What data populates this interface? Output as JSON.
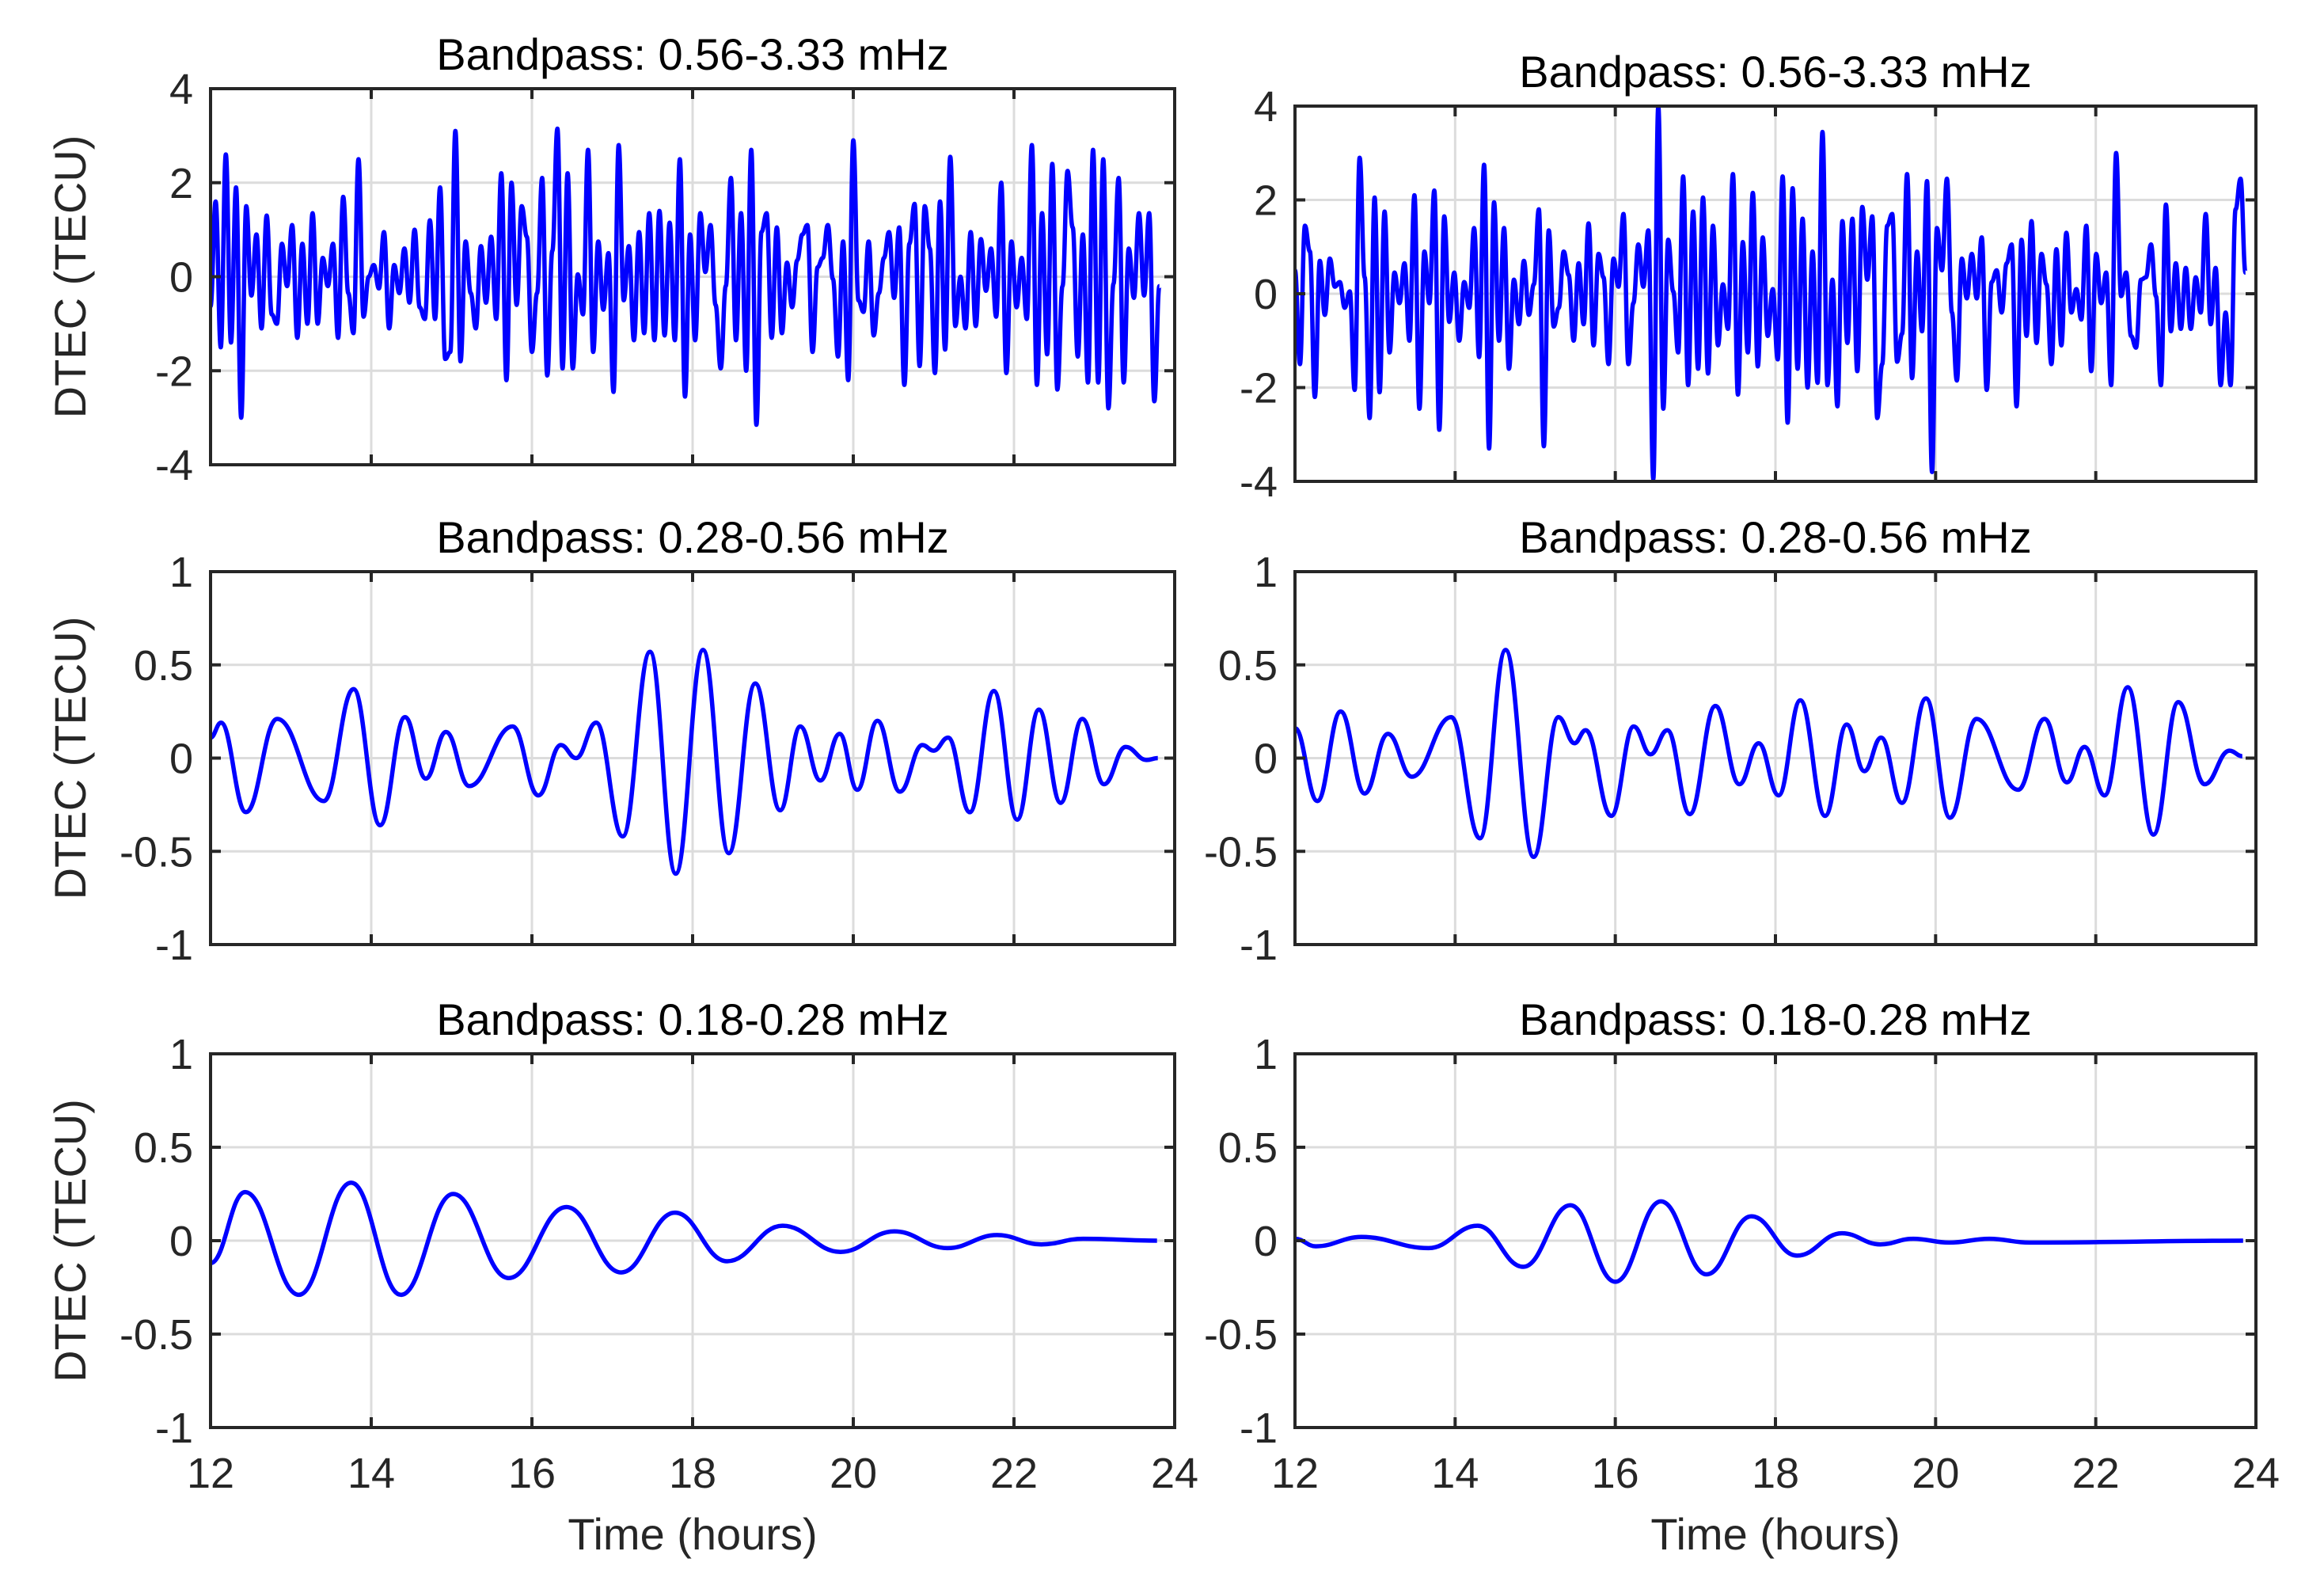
{
  "chart_data": [
    {
      "type": "line",
      "title": "Bandpass: 0.56-3.33 mHz",
      "xlabel": "",
      "ylabel": "DTEC (TECU)",
      "xlim": [
        12,
        24
      ],
      "ylim": [
        -4,
        4
      ],
      "xticks": [
        12,
        14,
        16,
        18,
        20,
        22,
        24
      ],
      "xticklabels": [],
      "yticks": [
        -4,
        -2,
        0,
        2,
        4
      ],
      "yticklabels": [
        "-4",
        "-2",
        "0",
        "2",
        "4"
      ],
      "grid": true,
      "line_color": "#0000ff",
      "series": [
        {
          "time_start": 12,
          "time_end": 23.81,
          "values": [
            -0.63,
            1.6,
            -1.5,
            2.6,
            -1.4,
            1.9,
            -3.0,
            1.5,
            -0.4,
            0.9,
            -1.1,
            1.3,
            -0.8,
            -1.0,
            0.7,
            -0.2,
            1.1,
            -1.3,
            0.7,
            -1.0,
            1.35,
            -1.0,
            0.4,
            -0.2,
            0.7,
            -1.3,
            1.7,
            -0.35,
            -1.2,
            2.5,
            -0.85,
            0,
            0.25,
            -0.25,
            0.95,
            -1.1,
            0.25,
            -0.35,
            0.6,
            -0.55,
            1.0,
            -0.65,
            -0.9,
            1.2,
            -0.9,
            1.9,
            -1.75,
            -1.6,
            3.1,
            -1.8,
            0.75,
            -0.35,
            -1.1,
            0.65,
            -0.55,
            0.85,
            -0.9,
            2.2,
            -2.2,
            2.0,
            -0.6,
            1.5,
            0.85,
            -1.6,
            -0.35,
            2.1,
            -2.1,
            0.55,
            3.15,
            -1.95,
            2.2,
            -1.95,
            0.05,
            -0.8,
            2.7,
            -1.6,
            0.75,
            -0.7,
            0.5,
            -2.45,
            2.8,
            -0.5,
            0.65,
            -1.35,
            0.95,
            -1.2,
            1.35,
            -1.35,
            1.4,
            -1.25,
            1.15,
            -1.35,
            2.5,
            -2.55,
            0.9,
            -1.35,
            1.35,
            0.1,
            1.1,
            -0.6,
            -1.95,
            -0.2,
            2.1,
            -1.35,
            1.35,
            -2.0,
            2.7,
            -3.15,
            0.95,
            1.35,
            -1.3,
            1.05,
            -1.2,
            0.3,
            -0.65,
            0.35,
            0.9,
            1.1,
            -1.6,
            0.2,
            0.4,
            1.1,
            -0.05,
            -1.7,
            0.75,
            -2.2,
            2.9,
            -0.5,
            -0.75,
            0.75,
            -1.25,
            -0.35,
            0.4,
            0.95,
            -0.45,
            1.05,
            -2.3,
            0.7,
            1.55,
            -1.9,
            1.5,
            0.6,
            -2.05,
            1.6,
            -1.55,
            2.55,
            -1.05,
            0,
            -1.1,
            0.95,
            -1.05,
            0.8,
            -0.3,
            0.6,
            -0.85,
            2.0,
            -2.05,
            0.75,
            -0.65,
            0.4,
            -0.9,
            2.8,
            -2.3,
            1.35,
            -1.65,
            2.4,
            -2.4,
            -0.2,
            2.25,
            1.05,
            -1.7,
            0.9,
            -2.25,
            2.7,
            -2.25,
            2.5,
            -2.8,
            -0.15,
            2.1,
            -2.25,
            0.6,
            -0.45,
            1.35,
            -0.4,
            1.35,
            -2.65,
            -0.2
          ]
        }
      ]
    },
    {
      "type": "line",
      "title": "Bandpass: 0.56-3.33 mHz",
      "xlabel": "",
      "ylabel": "",
      "xlim": [
        12,
        24
      ],
      "ylim": [
        -4,
        4
      ],
      "xticks": [
        12,
        14,
        16,
        18,
        20,
        22,
        24
      ],
      "xticklabels": [],
      "yticks": [
        -4,
        -2,
        0,
        2,
        4
      ],
      "yticklabels": [
        "-4",
        "-2",
        "0",
        "2",
        "4"
      ],
      "grid": true,
      "line_color": "#0000ff",
      "series": [
        {
          "time_start": 12,
          "time_end": 23.87,
          "values": [
            0.5,
            -1.5,
            1.45,
            0.9,
            -2.2,
            0.7,
            -0.45,
            0.75,
            0.15,
            0.25,
            -0.3,
            0.05,
            -2.05,
            2.9,
            0.35,
            -2.65,
            2.05,
            -2.1,
            1.75,
            -1.25,
            0.45,
            -0.2,
            0.65,
            -1.0,
            2.1,
            -2.45,
            0.9,
            -0.2,
            2.2,
            -2.9,
            1.65,
            -0.6,
            0.45,
            -1.0,
            0.25,
            -0.3,
            1.4,
            -1.35,
            2.75,
            -3.3,
            1.95,
            -1.0,
            1.4,
            -1.6,
            0.3,
            -0.65,
            0.7,
            -0.45,
            0.2,
            1.8,
            -3.25,
            1.35,
            -0.7,
            -0.3,
            0.9,
            0.4,
            -1.0,
            0.65,
            -0.65,
            1.5,
            -1.1,
            0.85,
            0.35,
            -1.5,
            0.75,
            0.15,
            1.7,
            -1.5,
            -0.2,
            1.05,
            0.15,
            1.35,
            -3.95,
            4.0,
            -2.45,
            1.15,
            0.05,
            -1.25,
            2.5,
            -1.95,
            1.75,
            -1.6,
            2.05,
            -1.7,
            1.45,
            -1.1,
            0.2,
            -0.75,
            2.55,
            -2.15,
            1.1,
            -1.25,
            2.15,
            -1.55,
            1.2,
            -0.9,
            0.1,
            -1.4,
            2.5,
            -2.75,
            2.25,
            -1.6,
            1.6,
            -2.0,
            0.9,
            -1.9,
            3.45,
            -1.95,
            0.3,
            -2.4,
            1.55,
            -1.05,
            1.6,
            -1.65,
            1.85,
            0.3,
            1.65,
            -2.65,
            -1.5,
            1.45,
            1.7,
            -1.45,
            -0.85,
            2.55,
            -1.8,
            0.9,
            -0.8,
            2.4,
            -3.8,
            1.4,
            0.5,
            2.45,
            -0.4,
            -1.85,
            0.75,
            -0.1,
            0.85,
            -0.1,
            1.2,
            -2.05,
            0.25,
            0.5,
            -0.4,
            0.65,
            1.05,
            -2.4,
            1.15,
            -0.9,
            1.55,
            -1.05,
            0.85,
            0.2,
            -1.5,
            0.95,
            -1.1,
            1.3,
            -0.4,
            0.1,
            -0.55,
            1.45,
            -1.65,
            0.85,
            -0.2,
            0.45,
            -1.95,
            3.0,
            -0.05,
            0.45,
            -0.9,
            -1.15,
            0.3,
            0.35,
            1.05,
            -0.05,
            -1.95,
            1.9,
            -0.8,
            0.65,
            -0.75,
            0.55,
            -0.75,
            0.35,
            -0.4,
            1.7,
            -0.65,
            0.55,
            -1.95,
            -0.4,
            -1.95,
            1.8,
            2.45,
            0.45
          ]
        }
      ]
    },
    {
      "type": "line",
      "title": "Bandpass: 0.28-0.56 mHz",
      "xlabel": "",
      "ylabel": "DTEC (TECU)",
      "xlim": [
        12,
        24
      ],
      "ylim": [
        -1,
        1
      ],
      "xticks": [
        12,
        14,
        16,
        18,
        20,
        22,
        24
      ],
      "xticklabels": [],
      "yticks": [
        -1,
        -0.5,
        0,
        0.5,
        1
      ],
      "yticklabels": [
        "-1",
        "-0.5",
        "0",
        "0.5",
        "1"
      ],
      "grid": true,
      "line_color": "#0000ff",
      "series": [
        {
          "points": [
            [
              12,
              0.11
            ],
            [
              12.13,
              0.19
            ],
            [
              12.44,
              -0.29
            ],
            [
              12.83,
              0.21
            ],
            [
              13.41,
              -0.23
            ],
            [
              13.78,
              0.37
            ],
            [
              14.11,
              -0.36
            ],
            [
              14.42,
              0.22
            ],
            [
              14.68,
              -0.11
            ],
            [
              14.93,
              0.14
            ],
            [
              15.22,
              -0.15
            ],
            [
              15.76,
              0.17
            ],
            [
              16.08,
              -0.2
            ],
            [
              16.36,
              0.07
            ],
            [
              16.55,
              0.0
            ],
            [
              16.8,
              0.19
            ],
            [
              17.13,
              -0.42
            ],
            [
              17.47,
              0.57
            ],
            [
              17.79,
              -0.62
            ],
            [
              18.13,
              0.58
            ],
            [
              18.45,
              -0.51
            ],
            [
              18.78,
              0.4
            ],
            [
              19.09,
              -0.28
            ],
            [
              19.34,
              0.17
            ],
            [
              19.59,
              -0.12
            ],
            [
              19.83,
              0.13
            ],
            [
              20.05,
              -0.17
            ],
            [
              20.3,
              0.2
            ],
            [
              20.58,
              -0.18
            ],
            [
              20.86,
              0.07
            ],
            [
              21.0,
              0.04
            ],
            [
              21.18,
              0.11
            ],
            [
              21.45,
              -0.29
            ],
            [
              21.75,
              0.36
            ],
            [
              22.04,
              -0.33
            ],
            [
              22.31,
              0.26
            ],
            [
              22.58,
              -0.24
            ],
            [
              22.85,
              0.21
            ],
            [
              23.12,
              -0.14
            ],
            [
              23.39,
              0.06
            ],
            [
              23.65,
              -0.01
            ],
            [
              23.79,
              0.0
            ]
          ]
        }
      ]
    },
    {
      "type": "line",
      "title": "Bandpass: 0.28-0.56 mHz",
      "xlabel": "",
      "ylabel": "",
      "xlim": [
        12,
        24
      ],
      "ylim": [
        -1,
        1
      ],
      "xticks": [
        12,
        14,
        16,
        18,
        20,
        22,
        24
      ],
      "xticklabels": [],
      "yticks": [
        -1,
        -0.5,
        0,
        0.5,
        1
      ],
      "yticklabels": [
        "-1",
        "-0.5",
        "0",
        "0.5",
        "1"
      ],
      "grid": true,
      "line_color": "#0000ff",
      "series": [
        {
          "points": [
            [
              12,
              0.16
            ],
            [
              12.28,
              -0.23
            ],
            [
              12.57,
              0.25
            ],
            [
              12.87,
              -0.19
            ],
            [
              13.16,
              0.13
            ],
            [
              13.46,
              -0.1
            ],
            [
              13.95,
              0.22
            ],
            [
              14.31,
              -0.43
            ],
            [
              14.63,
              0.58
            ],
            [
              14.98,
              -0.53
            ],
            [
              15.29,
              0.22
            ],
            [
              15.49,
              0.08
            ],
            [
              15.63,
              0.15
            ],
            [
              15.95,
              -0.31
            ],
            [
              16.23,
              0.17
            ],
            [
              16.44,
              0.02
            ],
            [
              16.65,
              0.15
            ],
            [
              16.93,
              -0.3
            ],
            [
              17.25,
              0.28
            ],
            [
              17.55,
              -0.14
            ],
            [
              17.79,
              0.08
            ],
            [
              18.04,
              -0.2
            ],
            [
              18.31,
              0.31
            ],
            [
              18.62,
              -0.31
            ],
            [
              18.89,
              0.18
            ],
            [
              19.11,
              -0.07
            ],
            [
              19.32,
              0.11
            ],
            [
              19.58,
              -0.24
            ],
            [
              19.88,
              0.32
            ],
            [
              20.18,
              -0.32
            ],
            [
              20.51,
              0.21
            ],
            [
              21.03,
              -0.17
            ],
            [
              21.36,
              0.21
            ],
            [
              21.64,
              -0.13
            ],
            [
              21.86,
              0.06
            ],
            [
              22.11,
              -0.2
            ],
            [
              22.4,
              0.38
            ],
            [
              22.72,
              -0.41
            ],
            [
              23.03,
              0.3
            ],
            [
              23.36,
              -0.14
            ],
            [
              23.67,
              0.04
            ],
            [
              23.83,
              0.01
            ]
          ]
        }
      ]
    },
    {
      "type": "line",
      "title": "Bandpass: 0.18-0.28 mHz",
      "xlabel": "Time (hours)",
      "ylabel": "DTEC (TECU)",
      "xlim": [
        12,
        24
      ],
      "ylim": [
        -1,
        1
      ],
      "xticks": [
        12,
        14,
        16,
        18,
        20,
        22,
        24
      ],
      "xticklabels": [
        "12",
        "14",
        "16",
        "18",
        "20",
        "22",
        "24"
      ],
      "yticks": [
        -1,
        -0.5,
        0,
        0.5,
        1
      ],
      "yticklabels": [
        "-1",
        "-0.5",
        "0",
        "0.5",
        "1"
      ],
      "grid": true,
      "line_color": "#0000ff",
      "series": [
        {
          "points": [
            [
              12,
              -0.12
            ],
            [
              12.43,
              0.26
            ],
            [
              13.1,
              -0.29
            ],
            [
              13.75,
              0.31
            ],
            [
              14.37,
              -0.29
            ],
            [
              15.02,
              0.25
            ],
            [
              15.71,
              -0.2
            ],
            [
              16.43,
              0.18
            ],
            [
              17.11,
              -0.17
            ],
            [
              17.78,
              0.15
            ],
            [
              18.43,
              -0.11
            ],
            [
              19.12,
              0.08
            ],
            [
              19.84,
              -0.06
            ],
            [
              20.51,
              0.05
            ],
            [
              21.17,
              -0.04
            ],
            [
              21.79,
              0.03
            ],
            [
              22.34,
              -0.02
            ],
            [
              22.86,
              0.01
            ],
            [
              23.78,
              0.0
            ]
          ]
        }
      ]
    },
    {
      "type": "line",
      "title": "Bandpass: 0.18-0.28 mHz",
      "xlabel": "Time (hours)",
      "ylabel": "",
      "xlim": [
        12,
        24
      ],
      "ylim": [
        -1,
        1
      ],
      "xticks": [
        12,
        14,
        16,
        18,
        20,
        22,
        24
      ],
      "xticklabels": [
        "12",
        "14",
        "16",
        "18",
        "20",
        "22",
        "24"
      ],
      "yticks": [
        -1,
        -0.5,
        0,
        0.5,
        1
      ],
      "yticklabels": [
        "-1",
        "-0.5",
        "0",
        "0.5",
        "1"
      ],
      "grid": true,
      "line_color": "#0000ff",
      "series": [
        {
          "points": [
            [
              12,
              0.01
            ],
            [
              12.26,
              -0.03
            ],
            [
              12.83,
              0.02
            ],
            [
              13.67,
              -0.04
            ],
            [
              14.28,
              0.08
            ],
            [
              14.85,
              -0.14
            ],
            [
              15.44,
              0.19
            ],
            [
              16.0,
              -0.22
            ],
            [
              16.57,
              0.21
            ],
            [
              17.14,
              -0.18
            ],
            [
              17.7,
              0.13
            ],
            [
              18.27,
              -0.08
            ],
            [
              18.83,
              0.04
            ],
            [
              19.31,
              -0.02
            ],
            [
              19.72,
              0.01
            ],
            [
              20.17,
              -0.01
            ],
            [
              20.67,
              0.01
            ],
            [
              21.17,
              -0.01
            ],
            [
              23.84,
              0.0
            ]
          ]
        }
      ]
    }
  ]
}
